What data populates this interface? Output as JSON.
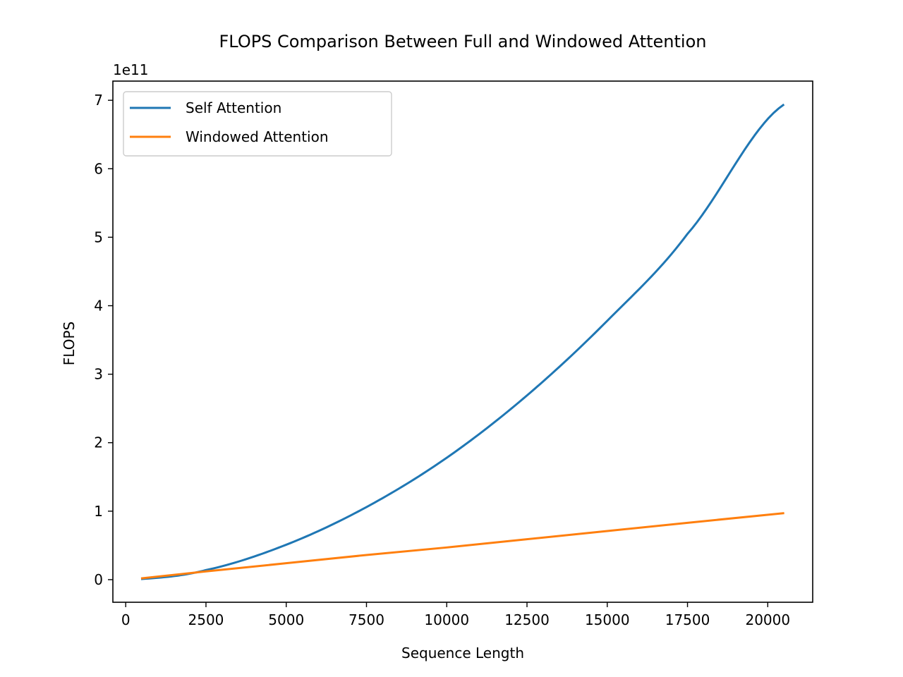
{
  "chart_data": {
    "type": "line",
    "title": "FLOPS Comparison Between Full and Windowed Attention",
    "xlabel": "Sequence Length",
    "ylabel": "FLOPS",
    "y_offset_label": "1e11",
    "xlim": [
      -400,
      21400
    ],
    "ylim": [
      -0.33,
      7.28
    ],
    "y_scale_note": "values in units of 1e11",
    "xticks": [
      0,
      2500,
      5000,
      7500,
      10000,
      12500,
      15000,
      17500,
      20000
    ],
    "xtick_labels": [
      "0",
      "2500",
      "5000",
      "7500",
      "10000",
      "12500",
      "15000",
      "17500",
      "20000"
    ],
    "yticks": [
      0,
      1,
      2,
      3,
      4,
      5,
      6,
      7
    ],
    "ytick_labels": [
      "0",
      "1",
      "2",
      "3",
      "4",
      "5",
      "6",
      "7"
    ],
    "grid": false,
    "legend_position": "top-left",
    "x": [
      512,
      2500,
      5000,
      7500,
      10000,
      12500,
      15000,
      17500,
      20480
    ],
    "series": [
      {
        "name": "Self Attention",
        "color": "#1f77b4",
        "values": [
          0.01,
          0.14,
          0.51,
          1.06,
          1.78,
          2.69,
          3.78,
          5.05,
          6.93
        ]
      },
      {
        "name": "Windowed Attention",
        "color": "#ff7f0e",
        "values": [
          0.02,
          0.12,
          0.24,
          0.36,
          0.47,
          0.59,
          0.71,
          0.83,
          0.97
        ]
      }
    ]
  }
}
